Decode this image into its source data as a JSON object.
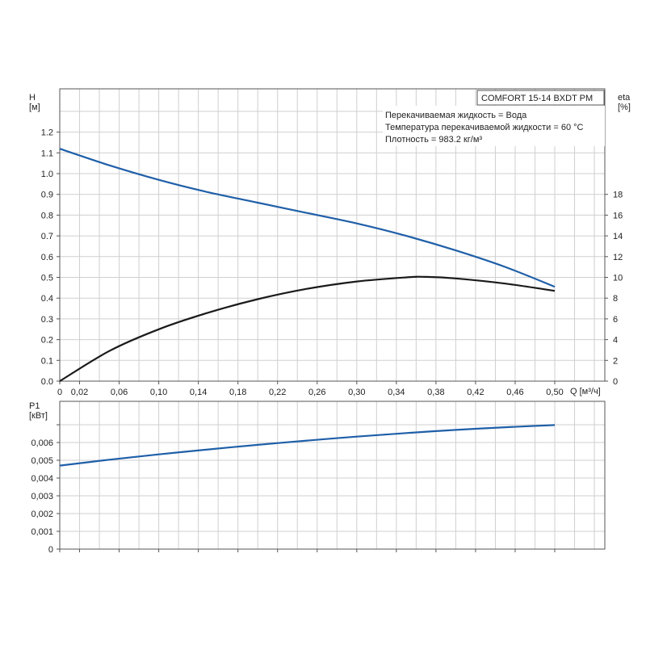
{
  "chart_data": [
    {
      "type": "line",
      "title": "COMFORT 15-14 BXDT PM",
      "info_lines": [
        "Перекачиваемая жидкость = Вода",
        "Температура перекачиваемой жидкости = 60 °C",
        "Плотность = 983.2 кг/м³"
      ],
      "xlabel": "Q [м³/ч]",
      "ylabel": [
        "H",
        "[м]"
      ],
      "y2label": [
        "eta",
        "[%]"
      ],
      "xlim": [
        0,
        0.55
      ],
      "ylim": [
        0,
        1.3
      ],
      "y2lim": [
        0,
        20
      ],
      "x_ticks": [
        "0",
        "0,02",
        "0,06",
        "0,10",
        "0,14",
        "0,18",
        "0,22",
        "0,26",
        "0,30",
        "0,34",
        "0,38",
        "0,42",
        "0,46",
        "0,50"
      ],
      "y_ticks": [
        "0.0",
        "0.1",
        "0.2",
        "0.3",
        "0.4",
        "0.5",
        "0.6",
        "0.7",
        "0.8",
        "0.9",
        "1.0",
        "1.1",
        "1.2"
      ],
      "y2_ticks": [
        "0",
        "2",
        "4",
        "6",
        "8",
        "10",
        "12",
        "14",
        "16",
        "18"
      ],
      "grid": true,
      "series": [
        {
          "axis": "left",
          "color": "#1f5fa8",
          "x": [
            0,
            0.05,
            0.1,
            0.15,
            0.2,
            0.25,
            0.3,
            0.35,
            0.4,
            0.45,
            0.5
          ],
          "y": [
            1.12,
            1.04,
            0.97,
            0.91,
            0.86,
            0.81,
            0.76,
            0.7,
            0.63,
            0.55,
            0.455
          ]
        },
        {
          "axis": "right",
          "color": "#1a1a1a",
          "x": [
            0,
            0.05,
            0.1,
            0.15,
            0.2,
            0.25,
            0.3,
            0.35,
            0.37,
            0.4,
            0.45,
            0.5
          ],
          "y": [
            0,
            2.9,
            5.0,
            6.6,
            7.9,
            8.9,
            9.6,
            10.0,
            10.05,
            9.9,
            9.4,
            8.7
          ]
        }
      ]
    },
    {
      "type": "line",
      "ylabel": [
        "P1",
        "[кВт]"
      ],
      "xlim": [
        0,
        0.55
      ],
      "ylim": [
        0,
        0.007
      ],
      "y_ticks": [
        "0",
        "0,001",
        "0,002",
        "0,003",
        "0,004",
        "0,005",
        "0,006"
      ],
      "grid": true,
      "series": [
        {
          "color": "#1f5fa8",
          "x": [
            0,
            0.05,
            0.1,
            0.15,
            0.2,
            0.25,
            0.3,
            0.35,
            0.4,
            0.45,
            0.5
          ],
          "y": [
            0.0047,
            0.00503,
            0.00533,
            0.00561,
            0.00587,
            0.00611,
            0.00633,
            0.00653,
            0.00671,
            0.00686,
            0.00698
          ]
        }
      ]
    }
  ]
}
